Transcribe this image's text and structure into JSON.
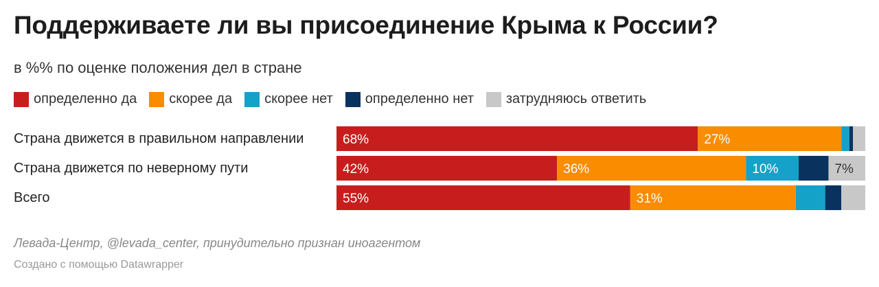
{
  "header": {
    "title": "Поддерживаете ли вы присоединение Крыма к России?",
    "subtitle": "в %% по оценке положения дел в стране"
  },
  "footer": {
    "source": "Левада-Центр, @levada_center, принудительно признан иноагентом",
    "credit": "Создано с помощью Datawrapper"
  },
  "chart_data": {
    "type": "bar",
    "orientation": "horizontal-stacked",
    "stacking": "percent",
    "xlim": [
      0,
      100
    ],
    "grid": false,
    "legend_placement": "top",
    "categories": [
      "Страна движется в правильном направлении",
      "Страна движется по неверному пути",
      "Всего"
    ],
    "series": [
      {
        "name": "определенно да",
        "color": "#c71e1d",
        "values": [
          68,
          42,
          55
        ],
        "labels": [
          "68%",
          "42%",
          "55%"
        ]
      },
      {
        "name": "скорее да",
        "color": "#fa8c00",
        "values": [
          27,
          36,
          31
        ],
        "labels": [
          "27%",
          "36%",
          "31%"
        ]
      },
      {
        "name": "скорее нет",
        "color": "#15a2c9",
        "values": [
          1.5,
          10,
          5.5
        ],
        "labels": [
          "",
          "10%",
          ""
        ]
      },
      {
        "name": "определенно нет",
        "color": "#09325f",
        "values": [
          0.7,
          5.7,
          3
        ],
        "labels": [
          "",
          "",
          ""
        ]
      },
      {
        "name": "затрудняюсь ответить",
        "color": "#c8c8c8",
        "values": [
          2.3,
          7,
          4.5
        ],
        "labels": [
          "",
          "7%",
          ""
        ]
      }
    ]
  }
}
